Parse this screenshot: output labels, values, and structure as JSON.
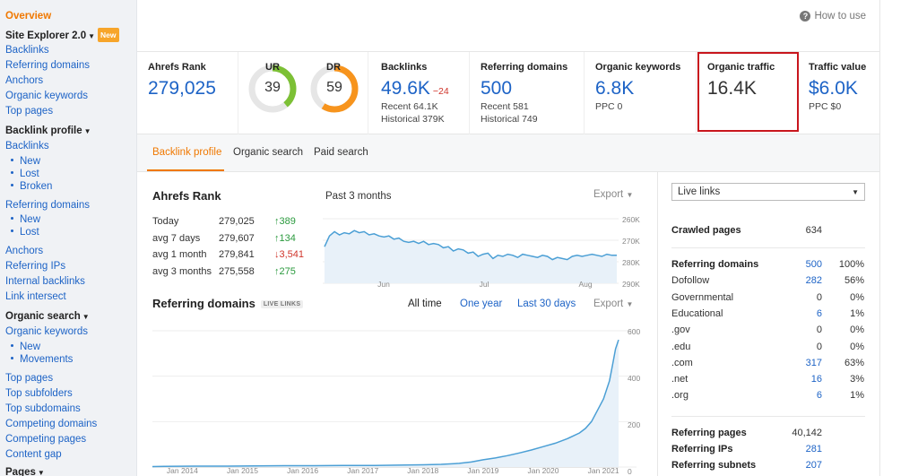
{
  "sidebar": {
    "overview": "Overview",
    "site_explorer": "Site Explorer 2.0",
    "new_badge": "New",
    "top_links": [
      "Backlinks",
      "Referring domains",
      "Anchors",
      "Organic keywords",
      "Top pages"
    ],
    "backlink_profile": "Backlink profile",
    "backlinks": "Backlinks",
    "backlinks_sub": [
      "New",
      "Lost",
      "Broken"
    ],
    "referring_domains": "Referring domains",
    "referring_domains_sub": [
      "New",
      "Lost"
    ],
    "mid_links": [
      "Anchors",
      "Referring IPs",
      "Internal backlinks",
      "Link intersect"
    ],
    "organic_search": "Organic search",
    "organic_keywords": "Organic keywords",
    "organic_sub": [
      "New",
      "Movements"
    ],
    "bottom_links": [
      "Top pages",
      "Top subfolders",
      "Top subdomains",
      "Competing domains",
      "Competing pages",
      "Content gap"
    ],
    "pages": "Pages"
  },
  "header": {
    "how_to_use": "How to use"
  },
  "metrics": {
    "ahrefs_rank": {
      "label": "Ahrefs Rank",
      "value": "279,025"
    },
    "ur": {
      "label": "UR",
      "value": "39",
      "fraction": 0.39,
      "color": "#7cc035"
    },
    "dr": {
      "label": "DR",
      "value": "59",
      "fraction": 0.59,
      "color": "#f7941d"
    },
    "backlinks": {
      "label": "Backlinks",
      "value": "49.6K",
      "delta": "−24",
      "recent": "Recent 64.1K",
      "historical": "Historical 379K"
    },
    "referring_domains": {
      "label": "Referring domains",
      "value": "500",
      "recent": "Recent 581",
      "historical": "Historical 749"
    },
    "organic_keywords": {
      "label": "Organic keywords",
      "value": "6.8K",
      "ppc": "PPC 0"
    },
    "organic_traffic": {
      "label": "Organic traffic",
      "value": "16.4K"
    },
    "traffic_value": {
      "label": "Traffic value",
      "value": "$6.0K",
      "ppc": "PPC $0"
    }
  },
  "tabs": [
    "Backlink profile",
    "Organic search",
    "Paid search"
  ],
  "ahrefs_rank_panel": {
    "title": "Ahrefs Rank",
    "period": "Past 3 months",
    "export": "Export",
    "rows": [
      {
        "label": "Today",
        "value": "279,025",
        "change": "↑389",
        "dir": "up"
      },
      {
        "label": "avg 7 days",
        "value": "279,607",
        "change": "↑134",
        "dir": "up"
      },
      {
        "label": "avg 1 month",
        "value": "279,841",
        "change": "↓3,541",
        "dir": "down"
      },
      {
        "label": "avg 3 months",
        "value": "275,558",
        "change": "↑275",
        "dir": "up"
      }
    ]
  },
  "referring_domains_panel": {
    "title": "Referring domains",
    "tag": "LIVE LINKS",
    "ranges": [
      "All time",
      "One year",
      "Last 30 days"
    ],
    "export": "Export"
  },
  "right_panel": {
    "select_value": "Live links",
    "crawled_pages": {
      "label": "Crawled pages",
      "value": "634"
    },
    "ref_domains_rows": [
      {
        "label": "Referring domains",
        "value": "500",
        "pct": "100%",
        "bold": true,
        "link": true
      },
      {
        "label": "Dofollow",
        "value": "282",
        "pct": "56%",
        "link": true
      },
      {
        "label": "Governmental",
        "value": "0",
        "pct": "0%",
        "link": false
      },
      {
        "label": "Educational",
        "value": "6",
        "pct": "1%",
        "link": true
      },
      {
        "label": ".gov",
        "value": "0",
        "pct": "0%",
        "link": false
      },
      {
        "label": ".edu",
        "value": "0",
        "pct": "0%",
        "link": false
      },
      {
        "label": ".com",
        "value": "317",
        "pct": "63%",
        "link": true
      },
      {
        "label": ".net",
        "value": "16",
        "pct": "3%",
        "link": true
      },
      {
        "label": ".org",
        "value": "6",
        "pct": "1%",
        "link": true
      }
    ],
    "bottom_rows": [
      {
        "label": "Referring pages",
        "value": "40,142",
        "link": false
      },
      {
        "label": "Referring IPs",
        "value": "281",
        "link": true
      },
      {
        "label": "Referring subnets",
        "value": "207",
        "link": true
      }
    ]
  },
  "chart_data": [
    {
      "type": "line",
      "title": "Ahrefs Rank",
      "subtitle": "Past 3 months",
      "x_ticks": [
        "Jun",
        "Jul",
        "Aug"
      ],
      "y_ticks": [
        "260K",
        "270K",
        "280K",
        "290K"
      ],
      "ylim": [
        260000,
        290000
      ],
      "y_inverted": true,
      "series": [
        {
          "values": [
            273000,
            268000,
            266000,
            267500,
            266500,
            267000,
            265500,
            266500,
            266000,
            267500,
            267000,
            268000,
            268500,
            268000,
            269500,
            269000,
            270500,
            271000,
            270500,
            271500,
            270500,
            272000,
            271500,
            272000,
            273500,
            273000,
            275000,
            274000,
            274500,
            276000,
            275500,
            277500,
            276500,
            276000,
            278500,
            277000,
            277500,
            276500,
            277000,
            278000,
            276500,
            277000,
            277500,
            278000,
            277000,
            277500,
            279000,
            278000,
            278500,
            279000,
            277500,
            277000,
            277500,
            277000,
            276500,
            277000,
            277500,
            276500,
            277000,
            277000
          ]
        }
      ]
    },
    {
      "type": "area",
      "title": "Referring domains",
      "x_ticks": [
        "Jan 2014",
        "Jan 2015",
        "Jan 2016",
        "Jan 2017",
        "Jan 2018",
        "Jan 2019",
        "Jan 2020",
        "Jan 2021"
      ],
      "y_ticks": [
        "0",
        "200",
        "400",
        "600"
      ],
      "ylim": [
        0,
        600
      ],
      "series": [
        {
          "x": [
            2013.8,
            2014.0,
            2014.5,
            2015.0,
            2015.5,
            2016.0,
            2016.5,
            2017.0,
            2017.5,
            2018.0,
            2018.3,
            2018.6,
            2018.9,
            2019.1,
            2019.3,
            2019.5,
            2019.7,
            2019.9,
            2020.1,
            2020.3,
            2020.5,
            2020.7,
            2020.9,
            2021.0,
            2021.1,
            2021.2,
            2021.3,
            2021.4,
            2021.45,
            2021.5,
            2021.55
          ],
          "values": [
            2,
            3,
            4,
            4,
            5,
            6,
            6,
            7,
            7,
            9,
            10,
            12,
            16,
            22,
            32,
            40,
            50,
            62,
            75,
            90,
            105,
            125,
            150,
            170,
            200,
            250,
            300,
            380,
            450,
            520,
            560
          ]
        }
      ]
    }
  ]
}
